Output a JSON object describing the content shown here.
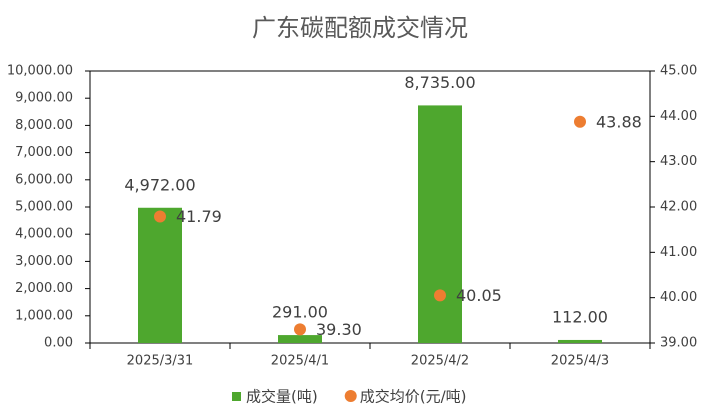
{
  "chart_data": {
    "type": "combo",
    "title": "广东碳配额成交情况",
    "categories": [
      "2025/3/31",
      "2025/4/1",
      "2025/4/2",
      "2025/4/3"
    ],
    "series": [
      {
        "name": "成交量(吨)",
        "type": "bar",
        "color": "#4ea72e",
        "values": [
          4972,
          291,
          8735,
          112
        ],
        "value_labels": [
          "4,972.00",
          "291.00",
          "8,735.00",
          "112.00"
        ]
      },
      {
        "name": "成交均价(元/吨)",
        "type": "scatter",
        "axis": "y2",
        "color": "#ed7d31",
        "values": [
          41.79,
          39.3,
          40.05,
          43.88
        ],
        "value_labels": [
          "41.79",
          "39.30",
          "40.05",
          "43.88"
        ]
      }
    ],
    "ylim": [
      0,
      10000
    ],
    "yticks": [
      {
        "value": 0,
        "label": "0.00"
      },
      {
        "value": 1000,
        "label": "1,000.00"
      },
      {
        "value": 2000,
        "label": "2,000.00"
      },
      {
        "value": 3000,
        "label": "3,000.00"
      },
      {
        "value": 4000,
        "label": "4,000.00"
      },
      {
        "value": 5000,
        "label": "5,000.00"
      },
      {
        "value": 6000,
        "label": "6,000.00"
      },
      {
        "value": 7000,
        "label": "7,000.00"
      },
      {
        "value": 8000,
        "label": "8,000.00"
      },
      {
        "value": 9000,
        "label": "9,000.00"
      },
      {
        "value": 10000,
        "label": "10,000.00"
      }
    ],
    "y2lim": [
      39,
      45
    ],
    "y2ticks": [
      {
        "value": 39,
        "label": "39.00"
      },
      {
        "value": 40,
        "label": "40.00"
      },
      {
        "value": 41,
        "label": "41.00"
      },
      {
        "value": 42,
        "label": "42.00"
      },
      {
        "value": 43,
        "label": "43.00"
      },
      {
        "value": 44,
        "label": "44.00"
      },
      {
        "value": 45,
        "label": "45.00"
      }
    ],
    "legend": "bottom"
  }
}
